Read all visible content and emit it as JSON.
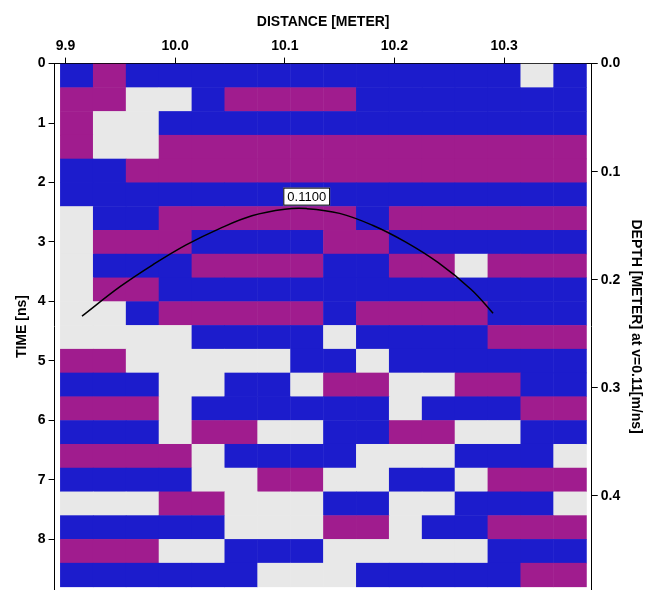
{
  "chart_data": {
    "type": "heatmap",
    "x_label": "DISTANCE [METER]",
    "y_label": "TIME [ns]",
    "y2_label": "DEPTH [METER] at v=0.11[m/ns]",
    "xlim": [
      9.89,
      10.38
    ],
    "xticks": [
      9.9,
      {
        "value": 10,
        "label": "10.0"
      },
      10.1,
      10.2,
      10.3
    ],
    "ylim": [
      0,
      8.85
    ],
    "yticks": [
      0,
      1,
      2,
      3,
      4,
      5,
      6,
      7,
      8
    ],
    "y2lim": [
      0,
      0.48675
    ],
    "y2ticks": [
      {
        "value": 0,
        "label": "0.0"
      },
      0.1,
      0.2,
      0.3,
      0.4
    ],
    "grid": false,
    "cells": {
      "x": [
        9.91,
        9.94,
        9.97,
        10.0,
        10.03,
        10.06,
        10.09,
        10.12,
        10.15,
        10.18,
        10.21,
        10.24,
        10.27,
        10.3,
        10.33,
        10.36
      ],
      "y": [
        0.2,
        0.6,
        1.0,
        1.4,
        1.8,
        2.2,
        2.6,
        3.0,
        3.4,
        3.8,
        4.2,
        4.6,
        5.0,
        5.4,
        5.8,
        6.2,
        6.6,
        7.0,
        7.4,
        7.8,
        8.2,
        8.6
      ],
      "values": [
        [
          -1,
          1,
          -1,
          -1,
          -1,
          -1,
          -1,
          -1,
          -1,
          -1,
          -1,
          -1,
          -1,
          -1,
          0,
          -1
        ],
        [
          1,
          1,
          0,
          0,
          -1,
          1,
          1,
          1,
          1,
          -1,
          -1,
          -1,
          -1,
          -1,
          -1,
          -1
        ],
        [
          1,
          0,
          0,
          -1,
          -1,
          -1,
          -1,
          -1,
          -1,
          -1,
          -1,
          -1,
          -1,
          -1,
          -1,
          -1
        ],
        [
          1,
          0,
          0,
          1,
          1,
          1,
          1,
          1,
          1,
          1,
          1,
          1,
          1,
          1,
          1,
          1
        ],
        [
          -1,
          -1,
          1,
          1,
          1,
          1,
          1,
          1,
          1,
          1,
          1,
          1,
          1,
          1,
          1,
          1
        ],
        [
          -1,
          -1,
          -1,
          -1,
          -1,
          -1,
          -1,
          -1,
          -1,
          -1,
          -1,
          -1,
          -1,
          -1,
          -1,
          -1
        ],
        [
          0,
          -1,
          -1,
          1,
          1,
          1,
          1,
          1,
          1,
          -1,
          1,
          1,
          1,
          1,
          1,
          1
        ],
        [
          0,
          1,
          1,
          1,
          -1,
          -1,
          -1,
          -1,
          1,
          1,
          -1,
          -1,
          -1,
          -1,
          -1,
          -1
        ],
        [
          0,
          -1,
          -1,
          -1,
          1,
          1,
          1,
          1,
          -1,
          -1,
          1,
          1,
          0,
          1,
          1,
          1
        ],
        [
          0,
          1,
          1,
          -1,
          -1,
          -1,
          -1,
          -1,
          -1,
          -1,
          -1,
          -1,
          -1,
          -1,
          -1,
          -1
        ],
        [
          0,
          0,
          -1,
          1,
          1,
          1,
          1,
          1,
          -1,
          1,
          1,
          1,
          1,
          -1,
          -1,
          -1
        ],
        [
          0,
          0,
          0,
          0,
          -1,
          -1,
          -1,
          -1,
          0,
          -1,
          -1,
          -1,
          -1,
          1,
          1,
          1
        ],
        [
          1,
          1,
          0,
          0,
          0,
          0,
          0,
          -1,
          -1,
          0,
          -1,
          -1,
          -1,
          -1,
          -1,
          -1
        ],
        [
          -1,
          -1,
          -1,
          0,
          0,
          -1,
          -1,
          0,
          1,
          1,
          0,
          0,
          1,
          1,
          -1,
          -1
        ],
        [
          1,
          1,
          1,
          0,
          -1,
          -1,
          -1,
          -1,
          -1,
          -1,
          0,
          -1,
          -1,
          -1,
          1,
          1
        ],
        [
          -1,
          -1,
          -1,
          0,
          1,
          1,
          0,
          0,
          -1,
          -1,
          1,
          1,
          0,
          0,
          -1,
          -1
        ],
        [
          1,
          1,
          1,
          1,
          0,
          -1,
          -1,
          -1,
          -1,
          0,
          0,
          0,
          -1,
          -1,
          -1,
          0
        ],
        [
          -1,
          -1,
          -1,
          -1,
          0,
          0,
          1,
          1,
          0,
          0,
          -1,
          -1,
          0,
          1,
          1,
          1
        ],
        [
          0,
          0,
          0,
          1,
          1,
          0,
          0,
          0,
          -1,
          -1,
          0,
          0,
          -1,
          -1,
          -1,
          0
        ],
        [
          -1,
          -1,
          -1,
          -1,
          -1,
          0,
          0,
          0,
          1,
          1,
          0,
          -1,
          -1,
          1,
          1,
          1
        ],
        [
          1,
          1,
          1,
          0,
          0,
          -1,
          -1,
          -1,
          0,
          0,
          0,
          0,
          0,
          -1,
          -1,
          -1
        ],
        [
          -1,
          -1,
          -1,
          -1,
          -1,
          -1,
          0,
          0,
          0,
          -1,
          -1,
          -1,
          -1,
          -1,
          1,
          1
        ]
      ]
    },
    "hyperbola": {
      "label": "0.1100",
      "color": "#000000",
      "x": [
        9.915,
        9.95,
        9.98,
        10.01,
        10.04,
        10.07,
        10.1,
        10.12,
        10.15,
        10.18,
        10.21,
        10.24,
        10.27,
        10.29
      ],
      "y": [
        4.25,
        3.75,
        3.38,
        3.05,
        2.78,
        2.56,
        2.45,
        2.44,
        2.52,
        2.72,
        3.0,
        3.35,
        3.8,
        4.2
      ]
    }
  }
}
